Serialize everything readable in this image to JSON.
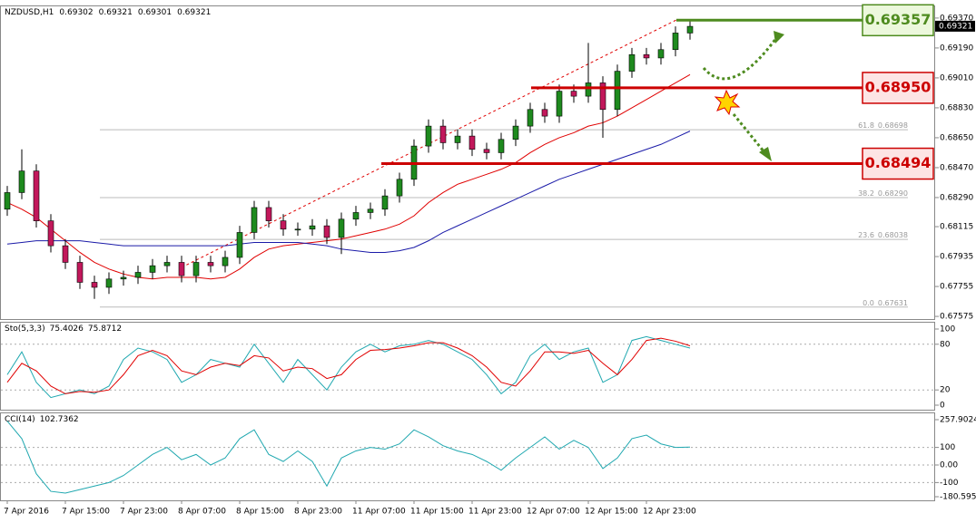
{
  "chart_data": [
    {
      "type": "candlestick",
      "symbol": "NZDUSD,H1",
      "ohlc": [
        0.69302,
        0.69321,
        0.69301,
        0.69321
      ],
      "categories": [
        "7 Apr 2016",
        null,
        null,
        null,
        "7 Apr 15:00",
        null,
        null,
        null,
        "7 Apr 23:00",
        null,
        null,
        null,
        "8 Apr 07:00",
        null,
        null,
        null,
        "8 Apr 15:00",
        null,
        null,
        null,
        "8 Apr 23:00",
        null,
        null,
        null,
        "11 Apr 07:00",
        null,
        null,
        null,
        "11 Apr 15:00",
        null,
        null,
        null,
        "11 Apr 23:00",
        null,
        null,
        null,
        "12 Apr 07:00",
        null,
        null,
        null,
        "12 Apr 15:00",
        null,
        null,
        null,
        "12 Apr 23:00",
        null,
        null,
        null
      ],
      "open": [
        0.6822,
        0.6832,
        0.6845,
        0.6815,
        0.68,
        0.679,
        0.6778,
        0.6775,
        0.678,
        0.6781,
        0.6784,
        0.6788,
        0.679,
        0.6782,
        0.679,
        0.6788,
        0.6793,
        0.6808,
        0.6823,
        0.6815,
        0.681,
        0.681,
        0.6812,
        0.6805,
        0.6816,
        0.682,
        0.6822,
        0.683,
        0.684,
        0.686,
        0.6872,
        0.6862,
        0.6866,
        0.6858,
        0.6856,
        0.6864,
        0.6872,
        0.6882,
        0.6878,
        0.6893,
        0.689,
        0.6898,
        0.6882,
        0.6905,
        0.6915,
        0.6913,
        0.6918,
        0.6928
      ],
      "high": [
        0.6836,
        0.6858,
        0.6849,
        0.6819,
        0.6804,
        0.6794,
        0.6782,
        0.6784,
        0.6785,
        0.6788,
        0.6792,
        0.6794,
        0.6794,
        0.6794,
        0.6794,
        0.6797,
        0.6812,
        0.6827,
        0.6827,
        0.6819,
        0.6814,
        0.6816,
        0.6816,
        0.682,
        0.6824,
        0.6826,
        0.6834,
        0.6844,
        0.6864,
        0.6876,
        0.6876,
        0.687,
        0.687,
        0.6862,
        0.6868,
        0.6876,
        0.6886,
        0.6886,
        0.6897,
        0.6897,
        0.6922,
        0.6902,
        0.6909,
        0.6919,
        0.6919,
        0.6922,
        0.6932,
        0.6936
      ],
      "low": [
        0.6818,
        0.6828,
        0.6811,
        0.6796,
        0.6786,
        0.6774,
        0.6768,
        0.6771,
        0.6776,
        0.6777,
        0.678,
        0.6784,
        0.6778,
        0.6778,
        0.6784,
        0.6784,
        0.6789,
        0.6804,
        0.6811,
        0.6806,
        0.6806,
        0.6806,
        0.6801,
        0.6795,
        0.6812,
        0.6816,
        0.6818,
        0.6826,
        0.6836,
        0.6856,
        0.6858,
        0.6858,
        0.6854,
        0.6852,
        0.6852,
        0.686,
        0.6868,
        0.6874,
        0.6874,
        0.6886,
        0.6886,
        0.6865,
        0.6878,
        0.6901,
        0.6909,
        0.6909,
        0.6914,
        0.6924
      ],
      "close": [
        0.6832,
        0.6845,
        0.6815,
        0.68,
        0.679,
        0.6778,
        0.6775,
        0.678,
        0.6781,
        0.6784,
        0.6788,
        0.679,
        0.6782,
        0.679,
        0.6788,
        0.6793,
        0.6808,
        0.6823,
        0.6815,
        0.681,
        0.681,
        0.6812,
        0.6805,
        0.6816,
        0.682,
        0.6822,
        0.683,
        0.684,
        0.686,
        0.6872,
        0.6862,
        0.6866,
        0.6858,
        0.6856,
        0.6864,
        0.6872,
        0.6882,
        0.6878,
        0.6893,
        0.689,
        0.6898,
        0.6882,
        0.6905,
        0.6915,
        0.6913,
        0.6918,
        0.6928,
        0.6932
      ],
      "up_color": "#1e8a1e",
      "down_color": "#c2185b",
      "overlays": [
        {
          "color": "#e00000",
          "values": [
            0.6826,
            0.6822,
            0.6817,
            0.681,
            0.6803,
            0.6796,
            0.679,
            0.6786,
            0.6783,
            0.6781,
            0.678,
            0.6781,
            0.6781,
            0.6781,
            0.678,
            0.6781,
            0.6786,
            0.6793,
            0.6798,
            0.68,
            0.6801,
            0.6802,
            0.6803,
            0.6804,
            0.6806,
            0.6808,
            0.681,
            0.6813,
            0.6818,
            0.6826,
            0.6832,
            0.6837,
            0.684,
            0.6843,
            0.6846,
            0.685,
            0.6856,
            0.6861,
            0.6865,
            0.6868,
            0.6872,
            0.6874,
            0.6878,
            0.6883,
            0.6888,
            0.6893,
            0.6898,
            0.6903
          ]
        },
        {
          "color": "#1a1aa8",
          "values": [
            0.6801,
            0.6802,
            0.6803,
            0.6803,
            0.6803,
            0.6803,
            0.6802,
            0.6801,
            0.68,
            0.68,
            0.68,
            0.68,
            0.68,
            0.68,
            0.68,
            0.68,
            0.6801,
            0.6802,
            0.6802,
            0.6802,
            0.6802,
            0.6801,
            0.68,
            0.6798,
            0.6797,
            0.6796,
            0.6796,
            0.6797,
            0.6799,
            0.6803,
            0.6808,
            0.6812,
            0.6816,
            0.682,
            0.6824,
            0.6828,
            0.6832,
            0.6836,
            0.684,
            0.6843,
            0.6846,
            0.6849,
            0.6852,
            0.6855,
            0.6858,
            0.6861,
            0.6865,
            0.6869
          ]
        }
      ],
      "ylim": [
        0.67559,
        0.69435
      ],
      "yticks": [
        {
          "value": 0.6937,
          "label": "0.69370"
        },
        {
          "value": 0.6919,
          "label": "0.69190"
        },
        {
          "value": 0.6901,
          "label": "0.69010"
        },
        {
          "value": 0.6883,
          "label": "0.68830"
        },
        {
          "value": 0.6865,
          "label": "0.68650"
        },
        {
          "value": 0.6847,
          "label": "0.68470"
        },
        {
          "value": 0.6829,
          "label": "0.68290"
        },
        0.68115,
        0.67935,
        0.67755,
        0.67575
      ],
      "fib": {
        "levels": [
          "61.8",
          "38.2",
          "23.6",
          "0.0"
        ],
        "prices": [
          0.68698,
          0.6829,
          0.68038,
          0.67631
        ],
        "price_labels": [
          "0.68698",
          "0.68290",
          "0.68038",
          "0.67631"
        ]
      },
      "levels": {
        "values": [
          0.69357,
          0.6895,
          0.68494
        ],
        "value_labels": [
          "0.69357",
          "0.68950",
          "0.68494"
        ],
        "colors": [
          "#4e8b1f",
          "#cc0000",
          "#cc0000"
        ],
        "fills": [
          "#ecf8dc",
          "#fde4e4",
          "#fde4e4"
        ]
      }
    },
    {
      "type": "line",
      "title": "Sto(5,3,3)",
      "readings": [
        75.4026,
        75.8712
      ],
      "series": [
        {
          "color": "#20a8b0",
          "values": [
            40,
            70,
            30,
            10,
            15,
            20,
            15,
            25,
            60,
            75,
            70,
            60,
            30,
            40,
            60,
            55,
            50,
            80,
            55,
            30,
            60,
            40,
            20,
            50,
            70,
            80,
            70,
            78,
            80,
            85,
            80,
            70,
            60,
            40,
            15,
            30,
            65,
            80,
            60,
            70,
            75,
            30,
            40,
            85,
            90,
            85,
            80,
            75
          ]
        },
        {
          "color": "#e00000",
          "values": [
            30,
            55,
            45,
            25,
            15,
            18,
            17,
            20,
            40,
            65,
            72,
            65,
            45,
            40,
            50,
            55,
            52,
            65,
            62,
            45,
            50,
            48,
            35,
            40,
            60,
            72,
            73,
            75,
            78,
            82,
            82,
            75,
            65,
            50,
            30,
            25,
            45,
            70,
            70,
            68,
            72,
            55,
            40,
            60,
            85,
            88,
            84,
            78
          ]
        }
      ],
      "ylim": [
        0,
        100
      ],
      "yticks": [
        100,
        80,
        20,
        0
      ]
    },
    {
      "type": "line",
      "title": "CCI(14)",
      "readings": [
        102.7362
      ],
      "series": [
        {
          "color": "#20a8b0",
          "values": [
            250,
            150,
            -50,
            -150,
            -160,
            -140,
            -120,
            -100,
            -60,
            0,
            60,
            100,
            30,
            60,
            0,
            40,
            150,
            200,
            60,
            20,
            80,
            20,
            -120,
            40,
            80,
            100,
            90,
            120,
            200,
            160,
            110,
            80,
            60,
            20,
            -30,
            40,
            100,
            160,
            90,
            140,
            100,
            -20,
            40,
            150,
            170,
            120,
            100,
            102
          ]
        }
      ],
      "ylim": [
        -180.5956,
        257.9024
      ],
      "yticks": [
        257.9024,
        100,
        {
          "value": 0,
          "label": "0.00"
        },
        -100,
        -180.5956
      ]
    }
  ]
}
